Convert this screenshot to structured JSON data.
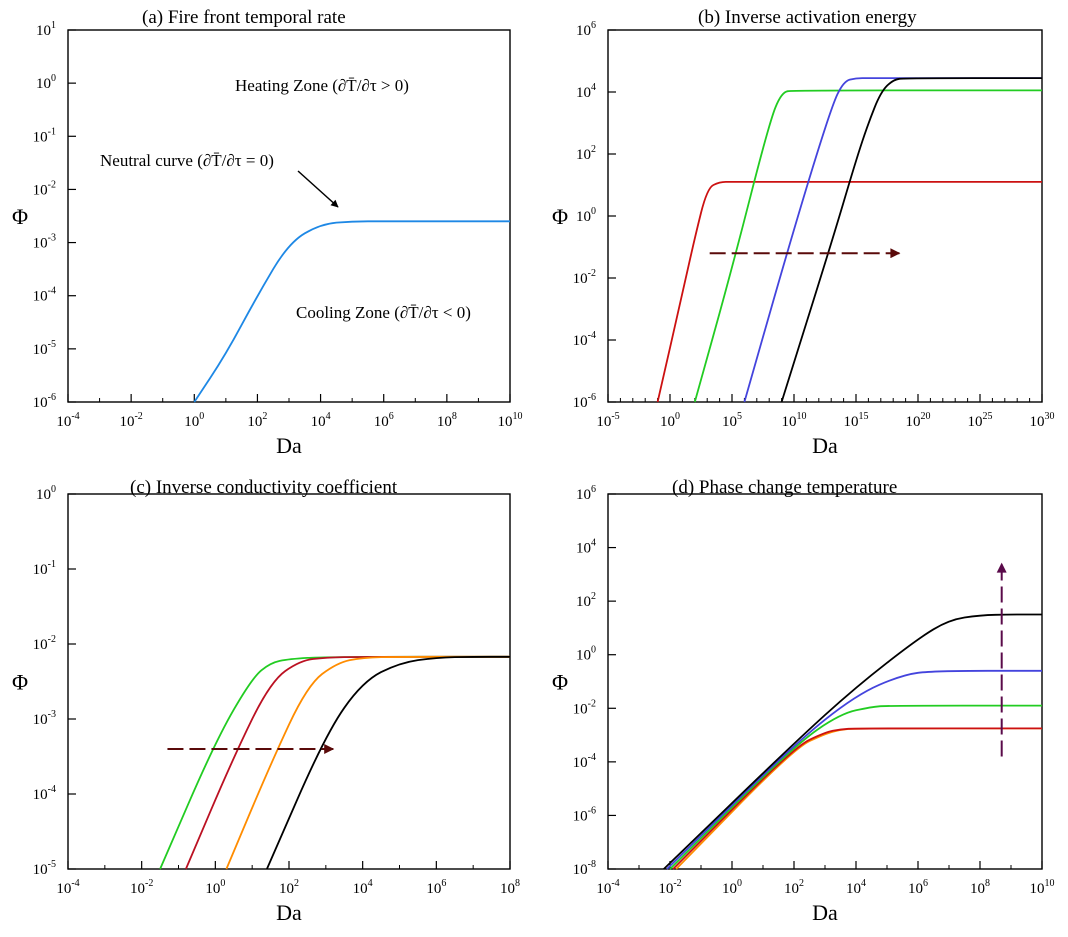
{
  "chart_data": [
    {
      "id": "a",
      "type": "line",
      "title": "(a) Fire front temporal rate",
      "xlabel": "Da",
      "ylabel": "Φ",
      "x_scale": "log",
      "y_scale": "log",
      "xlim_exp": [
        -4,
        10
      ],
      "ylim_exp": [
        -6,
        1
      ],
      "xticks_exp": [
        -4,
        -2,
        0,
        2,
        4,
        6,
        8,
        10
      ],
      "yticks_exp": [
        -6,
        -5,
        -4,
        -3,
        -2,
        -1,
        0,
        1
      ],
      "series": [
        {
          "name": "Neutral curve",
          "color": "#1e88e5",
          "x_exp": [
            0,
            1,
            2,
            3,
            4,
            5,
            6,
            7,
            8,
            9,
            10
          ],
          "y_exp": [
            -6,
            -5.1,
            -4.0,
            -3.0,
            -2.65,
            -2.6,
            -2.6,
            -2.6,
            -2.6,
            -2.6,
            -2.6
          ]
        }
      ],
      "annotations": {
        "heating": {
          "text": "Heating Zone (∂T̄/∂τ > 0)",
          "color": "#cc0000"
        },
        "neutral": {
          "text": "Neutral curve (∂T̄/∂τ = 0)",
          "color": "#000000"
        },
        "cooling": {
          "text": "Cooling Zone (∂T̄/∂τ < 0)",
          "color": "#22bb22"
        }
      }
    },
    {
      "id": "b",
      "type": "line",
      "title": "(b) Inverse activation energy",
      "xlabel": "Da",
      "ylabel": "Φ",
      "x_scale": "log",
      "y_scale": "log",
      "xlim_exp": [
        -5,
        30
      ],
      "ylim_exp": [
        -6,
        6
      ],
      "xticks_exp": [
        -5,
        0,
        5,
        10,
        15,
        20,
        25,
        30
      ],
      "yticks_exp": [
        -6,
        -4,
        -2,
        0,
        2,
        4,
        6
      ],
      "series": [
        {
          "name": "red",
          "color": "#cc1111",
          "x_exp": [
            -1,
            1,
            2,
            3,
            4,
            5,
            30
          ],
          "y_exp": [
            -6,
            -2.5,
            -0.7,
            0.9,
            1.1,
            1.1,
            1.1
          ]
        },
        {
          "name": "green",
          "color": "#22cc22",
          "x_exp": [
            2,
            5,
            8,
            9,
            10,
            30
          ],
          "y_exp": [
            -6,
            -1.7,
            3.0,
            4.0,
            4.05,
            4.05
          ]
        },
        {
          "name": "blue",
          "color": "#4444dd",
          "x_exp": [
            6,
            10,
            13,
            14,
            15,
            16,
            30
          ],
          "y_exp": [
            -6,
            -0.4,
            3.5,
            4.35,
            4.45,
            4.45,
            4.45
          ]
        },
        {
          "name": "black",
          "color": "#000000",
          "x_exp": [
            9,
            13,
            15,
            16,
            17,
            18,
            19,
            30
          ],
          "y_exp": [
            -6,
            -0.9,
            1.8,
            3.0,
            4.0,
            4.4,
            4.45,
            4.45
          ]
        }
      ],
      "arrow": {
        "from": [
          3.2,
          -1.2
        ],
        "to": [
          18.5,
          -1.2
        ],
        "color": "#5a0a0a",
        "dashed": true
      }
    },
    {
      "id": "c",
      "type": "line",
      "title": "(c) Inverse conductivity coefficient",
      "xlabel": "Da",
      "ylabel": "Φ",
      "x_scale": "log",
      "y_scale": "log",
      "xlim_exp": [
        -4,
        8
      ],
      "ylim_exp": [
        -5,
        0
      ],
      "xticks_exp": [
        -4,
        -2,
        0,
        2,
        4,
        6,
        8
      ],
      "yticks_exp": [
        -5,
        -4,
        -3,
        -2,
        -1,
        0
      ],
      "series": [
        {
          "name": "green",
          "color": "#22cc22",
          "x_exp": [
            -1.5,
            0,
            1,
            1.5,
            2,
            3,
            8
          ],
          "y_exp": [
            -5,
            -3.3,
            -2.45,
            -2.25,
            -2.2,
            -2.17,
            -2.17
          ]
        },
        {
          "name": "red",
          "color": "#bb1122",
          "x_exp": [
            -0.8,
            0.5,
            1.5,
            2.3,
            3,
            4,
            8
          ],
          "y_exp": [
            -5,
            -3.5,
            -2.5,
            -2.22,
            -2.18,
            -2.17,
            -2.17
          ]
        },
        {
          "name": "orange",
          "color": "#ff8c00",
          "x_exp": [
            0.3,
            1.5,
            2.5,
            3.3,
            4,
            5,
            8
          ],
          "y_exp": [
            -5,
            -3.6,
            -2.55,
            -2.25,
            -2.18,
            -2.17,
            -2.17
          ]
        },
        {
          "name": "black",
          "color": "#000000",
          "x_exp": [
            1.4,
            3,
            4,
            5,
            6,
            7,
            8
          ],
          "y_exp": [
            -5,
            -3.2,
            -2.5,
            -2.25,
            -2.18,
            -2.17,
            -2.17
          ]
        }
      ],
      "arrow": {
        "from": [
          -1.3,
          -3.4
        ],
        "to": [
          3.2,
          -3.4
        ],
        "color": "#5a0a0a",
        "dashed": true
      }
    },
    {
      "id": "d",
      "type": "line",
      "title": "(d) Phase change temperature",
      "xlabel": "Da",
      "ylabel": "Φ",
      "x_scale": "log",
      "y_scale": "log",
      "xlim_exp": [
        -4,
        10
      ],
      "ylim_exp": [
        -8,
        6
      ],
      "xticks_exp": [
        -4,
        -2,
        0,
        2,
        4,
        6,
        8,
        10
      ],
      "yticks_exp": [
        -8,
        -6,
        -4,
        -2,
        0,
        2,
        4,
        6
      ],
      "series": [
        {
          "name": "orange",
          "color": "#ff8c00",
          "x_exp": [
            -1.8,
            2,
            3,
            3.5,
            4,
            10
          ],
          "y_exp": [
            -8,
            -3.5,
            -2.95,
            -2.8,
            -2.75,
            -2.75
          ]
        },
        {
          "name": "red",
          "color": "#cc1111",
          "x_exp": [
            -1.9,
            2,
            3,
            3.5,
            4,
            10
          ],
          "y_exp": [
            -8,
            -3.45,
            -2.9,
            -2.78,
            -2.75,
            -2.75
          ]
        },
        {
          "name": "green",
          "color": "#22cc22",
          "x_exp": [
            -2.0,
            2,
            3.5,
            4.5,
            5,
            10
          ],
          "y_exp": [
            -8,
            -3.4,
            -2.2,
            -1.95,
            -1.9,
            -1.9
          ]
        },
        {
          "name": "blue",
          "color": "#4444dd",
          "x_exp": [
            -2.1,
            2,
            4,
            5.5,
            6.5,
            10
          ],
          "y_exp": [
            -8,
            -3.35,
            -1.5,
            -0.75,
            -0.6,
            -0.6
          ]
        },
        {
          "name": "black",
          "color": "#000000",
          "x_exp": [
            -2.2,
            2,
            4,
            6,
            7,
            8,
            9,
            10
          ],
          "y_exp": [
            -8,
            -3.3,
            -1.2,
            0.6,
            1.3,
            1.48,
            1.5,
            1.5
          ]
        }
      ],
      "arrow": {
        "from": [
          8.7,
          -3.8
        ],
        "to": [
          8.7,
          3.4
        ],
        "color": "#5a0a4a",
        "dashed": true
      }
    }
  ]
}
